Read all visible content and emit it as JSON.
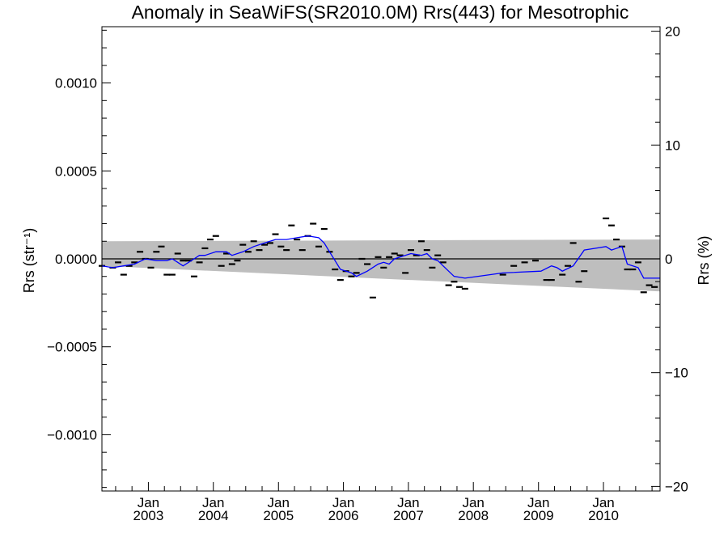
{
  "chart_data": {
    "type": "line",
    "title": "Anomaly in SeaWiFS(SR2010.0M) Rrs(443) for Mesotrophic",
    "ylabel_left": "Rrs (str⁻¹)",
    "ylabel_right": "Rrs (%)",
    "xlabel": "",
    "xlim": [
      "2002-04-15",
      "2010-11-15"
    ],
    "ylim": [
      -0.00132,
      0.00132
    ],
    "ylim_right": [
      -20.4,
      20.4
    ],
    "left_ticks": [
      {
        "value": 0.001,
        "label": "0.0010"
      },
      {
        "value": 0.0005,
        "label": "0.0005"
      },
      {
        "value": 0.0,
        "label": "0.0000"
      },
      {
        "value": -0.0005,
        "label": "−0.0005"
      },
      {
        "value": -0.001,
        "label": "−0.0010"
      }
    ],
    "right_ticks": [
      {
        "value": 20,
        "label": "20"
      },
      {
        "value": 10,
        "label": "10"
      },
      {
        "value": 0,
        "label": "0"
      },
      {
        "value": -10,
        "label": "−10"
      },
      {
        "value": -20,
        "label": "−20"
      }
    ],
    "x_ticks": [
      {
        "date": "2003-01-01",
        "month": "Jan",
        "year": "2003"
      },
      {
        "date": "2004-01-01",
        "month": "Jan",
        "year": "2004"
      },
      {
        "date": "2005-01-01",
        "month": "Jan",
        "year": "2005"
      },
      {
        "date": "2006-01-01",
        "month": "Jan",
        "year": "2006"
      },
      {
        "date": "2007-01-01",
        "month": "Jan",
        "year": "2007"
      },
      {
        "date": "2008-01-01",
        "month": "Jan",
        "year": "2008"
      },
      {
        "date": "2009-01-01",
        "month": "Jan",
        "year": "2009"
      },
      {
        "date": "2010-01-01",
        "month": "Jan",
        "year": "2010"
      }
    ],
    "grid": false,
    "zero_line": true,
    "colors": {
      "smoothed": "#0000ff",
      "band": "#bebebe",
      "monthly": "#000000"
    },
    "band": {
      "start": {
        "date": "2002-04-15",
        "upper": 0.0001,
        "lower": -4e-05
      },
      "end": {
        "date": "2010-11-15",
        "upper": 0.00011,
        "lower": -0.000185
      }
    },
    "series": [
      {
        "style": "dash-markers",
        "points": [
          [
            "2002-04-15",
            -4e-05
          ],
          [
            "2002-06-15",
            -5e-05
          ],
          [
            "2002-07-15",
            -2e-05
          ],
          [
            "2002-08-15",
            -9e-05
          ],
          [
            "2002-09-15",
            -4e-05
          ],
          [
            "2002-10-15",
            -2e-05
          ],
          [
            "2002-11-15",
            4e-05
          ],
          [
            "2002-12-15",
            0.0
          ],
          [
            "2003-01-15",
            -5e-05
          ],
          [
            "2003-02-15",
            4e-05
          ],
          [
            "2003-03-15",
            7e-05
          ],
          [
            "2003-04-15",
            -9e-05
          ],
          [
            "2003-05-15",
            -9e-05
          ],
          [
            "2003-06-15",
            3e-05
          ],
          [
            "2003-07-15",
            -1e-05
          ],
          [
            "2003-08-15",
            -1e-05
          ],
          [
            "2003-09-15",
            -0.0001
          ],
          [
            "2003-10-15",
            -2e-05
          ],
          [
            "2003-11-15",
            6e-05
          ],
          [
            "2003-12-15",
            0.00011
          ],
          [
            "2004-01-15",
            0.00013
          ],
          [
            "2004-02-15",
            -4e-05
          ],
          [
            "2004-03-15",
            3e-05
          ],
          [
            "2004-04-15",
            -3e-05
          ],
          [
            "2004-05-15",
            -1e-05
          ],
          [
            "2004-06-15",
            8e-05
          ],
          [
            "2004-07-15",
            4e-05
          ],
          [
            "2004-08-15",
            0.0001
          ],
          [
            "2004-09-15",
            5e-05
          ],
          [
            "2004-10-15",
            8e-05
          ],
          [
            "2004-11-15",
            9e-05
          ],
          [
            "2004-12-15",
            0.00014
          ],
          [
            "2005-01-15",
            7e-05
          ],
          [
            "2005-02-15",
            5e-05
          ],
          [
            "2005-03-15",
            0.00019
          ],
          [
            "2005-04-15",
            0.00011
          ],
          [
            "2005-05-15",
            5e-05
          ],
          [
            "2005-06-15",
            0.00013
          ],
          [
            "2005-07-15",
            0.0002
          ],
          [
            "2005-08-15",
            7e-05
          ],
          [
            "2005-09-15",
            0.00017
          ],
          [
            "2005-10-15",
            4e-05
          ],
          [
            "2005-11-15",
            -6e-05
          ],
          [
            "2005-12-15",
            -0.00012
          ],
          [
            "2006-01-15",
            -7e-05
          ],
          [
            "2006-02-15",
            -0.0001
          ],
          [
            "2006-03-15",
            -8e-05
          ],
          [
            "2006-04-15",
            0.0
          ],
          [
            "2006-05-15",
            -3e-05
          ],
          [
            "2006-06-15",
            -0.00022
          ],
          [
            "2006-07-15",
            1e-05
          ],
          [
            "2006-08-15",
            -5e-05
          ],
          [
            "2006-09-15",
            1e-05
          ],
          [
            "2006-10-15",
            3e-05
          ],
          [
            "2006-11-15",
            2e-05
          ],
          [
            "2006-12-15",
            -8e-05
          ],
          [
            "2007-01-15",
            5e-05
          ],
          [
            "2007-02-15",
            2e-05
          ],
          [
            "2007-03-15",
            0.0001
          ],
          [
            "2007-04-15",
            5e-05
          ],
          [
            "2007-05-15",
            -5e-05
          ],
          [
            "2007-06-15",
            2e-05
          ],
          [
            "2007-07-15",
            -2e-05
          ],
          [
            "2007-08-15",
            -0.00015
          ],
          [
            "2007-09-15",
            -0.00013
          ],
          [
            "2007-10-15",
            -0.00016
          ],
          [
            "2007-11-15",
            -0.00017
          ],
          [
            "2008-06-15",
            -9e-05
          ],
          [
            "2008-08-15",
            -4e-05
          ],
          [
            "2008-10-15",
            -2e-05
          ],
          [
            "2008-12-15",
            -1e-05
          ],
          [
            "2009-02-15",
            -0.00012
          ],
          [
            "2009-03-15",
            -0.00012
          ],
          [
            "2009-05-15",
            -9e-05
          ],
          [
            "2009-06-15",
            -4e-05
          ],
          [
            "2009-07-15",
            9e-05
          ],
          [
            "2009-08-15",
            -0.00013
          ],
          [
            "2009-09-15",
            -7e-05
          ],
          [
            "2010-01-15",
            0.00023
          ],
          [
            "2010-02-15",
            0.00019
          ],
          [
            "2010-03-15",
            0.00011
          ],
          [
            "2010-04-15",
            7e-05
          ],
          [
            "2010-05-15",
            -6e-05
          ],
          [
            "2010-06-15",
            -6e-05
          ],
          [
            "2010-07-15",
            -2e-05
          ],
          [
            "2010-08-15",
            -0.00019
          ],
          [
            "2010-09-15",
            -0.00015
          ],
          [
            "2010-10-15",
            -0.00016
          ]
        ]
      },
      {
        "style": "line",
        "points": [
          [
            "2002-04-15",
            -4e-05
          ],
          [
            "2002-06-15",
            -5e-05
          ],
          [
            "2002-08-15",
            -4e-05
          ],
          [
            "2002-10-15",
            -3e-05
          ],
          [
            "2002-12-15",
            0.0
          ],
          [
            "2003-02-15",
            -1e-05
          ],
          [
            "2003-04-15",
            -1e-05
          ],
          [
            "2003-05-15",
            0.0
          ],
          [
            "2003-06-15",
            -2e-05
          ],
          [
            "2003-07-15",
            -4e-05
          ],
          [
            "2003-09-15",
            0.0
          ],
          [
            "2003-10-15",
            2e-05
          ],
          [
            "2003-11-15",
            2e-05
          ],
          [
            "2004-01-15",
            4e-05
          ],
          [
            "2004-03-15",
            4e-05
          ],
          [
            "2004-04-15",
            2e-05
          ],
          [
            "2004-06-15",
            4e-05
          ],
          [
            "2004-08-15",
            7e-05
          ],
          [
            "2004-10-15",
            9e-05
          ],
          [
            "2004-12-15",
            0.00011
          ],
          [
            "2005-02-15",
            0.00011
          ],
          [
            "2005-04-15",
            0.00012
          ],
          [
            "2005-06-15",
            0.00013
          ],
          [
            "2005-08-15",
            0.00012
          ],
          [
            "2005-09-15",
            9e-05
          ],
          [
            "2005-10-15",
            4e-05
          ],
          [
            "2005-11-15",
            -1e-05
          ],
          [
            "2005-12-15",
            -6e-05
          ],
          [
            "2006-02-15",
            -8e-05
          ],
          [
            "2006-03-15",
            -0.0001
          ],
          [
            "2006-05-15",
            -7e-05
          ],
          [
            "2006-07-15",
            -3e-05
          ],
          [
            "2006-08-15",
            -2e-05
          ],
          [
            "2006-09-15",
            -3e-05
          ],
          [
            "2006-10-15",
            0.0
          ],
          [
            "2006-11-15",
            1e-05
          ],
          [
            "2007-01-15",
            3e-05
          ],
          [
            "2007-03-15",
            2e-05
          ],
          [
            "2007-04-15",
            3e-05
          ],
          [
            "2007-05-15",
            0.0
          ],
          [
            "2007-06-15",
            -1e-05
          ],
          [
            "2007-07-15",
            -4e-05
          ],
          [
            "2007-09-15",
            -0.0001
          ],
          [
            "2007-11-15",
            -0.00011
          ],
          [
            "2008-06-15",
            -8e-05
          ],
          [
            "2009-01-15",
            -7e-05
          ],
          [
            "2009-03-15",
            -4e-05
          ],
          [
            "2009-04-15",
            -5e-05
          ],
          [
            "2009-05-15",
            -7e-05
          ],
          [
            "2009-07-15",
            -4e-05
          ],
          [
            "2009-09-15",
            5e-05
          ],
          [
            "2009-11-15",
            6e-05
          ],
          [
            "2010-01-15",
            7e-05
          ],
          [
            "2010-02-15",
            5e-05
          ],
          [
            "2010-04-15",
            7e-05
          ],
          [
            "2010-05-15",
            -3e-05
          ],
          [
            "2010-07-15",
            -5e-05
          ],
          [
            "2010-08-15",
            -0.00011
          ],
          [
            "2010-10-15",
            -0.00011
          ],
          [
            "2010-11-15",
            -0.00011
          ]
        ]
      }
    ]
  }
}
